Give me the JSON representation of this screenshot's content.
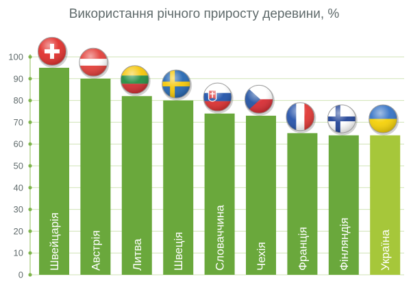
{
  "colors": {
    "bar": "#6aa83c",
    "bar_highlight": "#a6c73a",
    "grid": "#cfe3b5",
    "axis": "#8fbe5a",
    "tick_dot": "#7fb54c",
    "text": "#5f6a6b"
  },
  "chart_data": {
    "type": "bar",
    "title": "Використання річного приросту деревини, %",
    "xlabel": "",
    "ylabel": "",
    "ylim": [
      0,
      100
    ],
    "yticks": [
      0,
      10,
      20,
      30,
      40,
      50,
      60,
      70,
      80,
      90,
      100
    ],
    "grid": true,
    "categories": [
      "Швейцарія",
      "Австрія",
      "Литва",
      "Швеція",
      "Словаччина",
      "Чехія",
      "Франція",
      "Фінляндія",
      "Україна"
    ],
    "values": [
      95,
      90,
      82,
      80,
      74,
      73,
      65,
      64,
      64
    ],
    "flags": [
      "switzerland-flag",
      "austria-flag",
      "lithuania-flag",
      "sweden-flag",
      "slovakia-flag",
      "czechia-flag",
      "france-flag",
      "finland-flag",
      "ukraine-flag"
    ],
    "highlight_index": 8
  }
}
